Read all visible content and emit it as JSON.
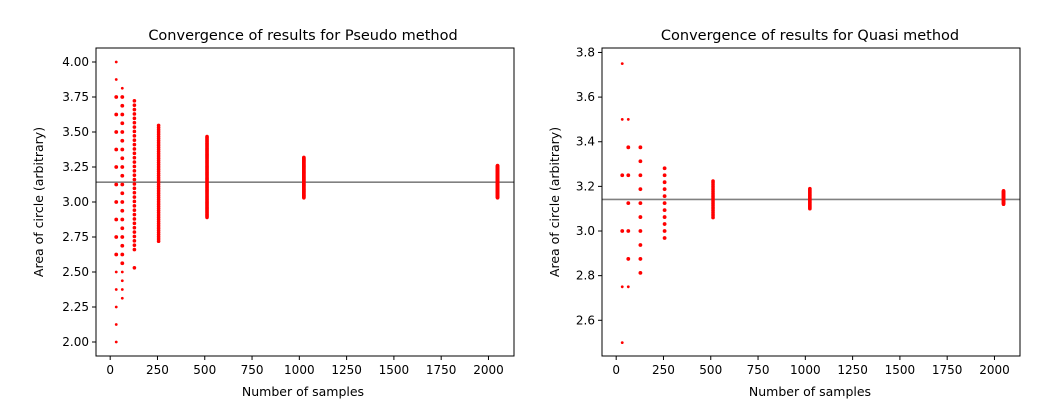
{
  "chart_data": [
    {
      "type": "scatter",
      "title": "Convergence of results for Pseudo method",
      "xlabel": "Number of samples",
      "ylabel": "Area of circle (arbitrary)",
      "xlim": [
        -75,
        2135
      ],
      "ylim": [
        1.9,
        4.1
      ],
      "xticks": [
        0,
        250,
        500,
        750,
        1000,
        1250,
        1500,
        1750,
        2000
      ],
      "yticks": [
        2.0,
        2.25,
        2.5,
        2.75,
        3.0,
        3.25,
        3.5,
        3.75,
        4.0
      ],
      "xtick_labels": [
        "0",
        "250",
        "500",
        "750",
        "1000",
        "1250",
        "1500",
        "1750",
        "2000"
      ],
      "ytick_labels": [
        "2.00",
        "2.25",
        "2.50",
        "2.75",
        "3.00",
        "3.25",
        "3.50",
        "3.75",
        "4.00"
      ],
      "reference_line": {
        "y": 3.1416,
        "color": "#808080"
      },
      "marker_color": "#ff0000",
      "grid": false,
      "clusters": [
        {
          "x": 32,
          "values": [
            2.0,
            2.125,
            2.25,
            2.375,
            2.5,
            2.625,
            2.75,
            2.875,
            3.0,
            3.125,
            3.25,
            3.375,
            3.5,
            3.625,
            3.75,
            3.875,
            4.0
          ]
        },
        {
          "x": 64,
          "values": [
            2.3125,
            2.375,
            2.4375,
            2.5,
            2.5625,
            2.625,
            2.6875,
            2.75,
            2.8125,
            2.875,
            2.9375,
            3.0,
            3.0625,
            3.125,
            3.1875,
            3.25,
            3.3125,
            3.375,
            3.4375,
            3.5,
            3.5625,
            3.625,
            3.6875,
            3.75,
            3.8125
          ]
        },
        {
          "x": 128,
          "range": [
            2.66,
            3.72
          ],
          "step": 0.03125,
          "outliers": [
            2.53
          ]
        },
        {
          "x": 256,
          "range": [
            2.72,
            3.55
          ],
          "step": 0.0156
        },
        {
          "x": 512,
          "range": [
            2.89,
            3.47
          ],
          "step": 0.0078
        },
        {
          "x": 1024,
          "range": [
            3.03,
            3.32
          ],
          "step": 0.0039
        },
        {
          "x": 2048,
          "range": [
            3.03,
            3.26
          ],
          "step": 0.002
        }
      ]
    },
    {
      "type": "scatter",
      "title": "Convergence of results for Quasi method",
      "xlabel": "Number of samples",
      "ylabel": "Area of circle (arbitrary)",
      "xlim": [
        -75,
        2135
      ],
      "ylim": [
        2.44,
        3.82
      ],
      "xticks": [
        0,
        250,
        500,
        750,
        1000,
        1250,
        1500,
        1750,
        2000
      ],
      "yticks": [
        2.6,
        2.8,
        3.0,
        3.2,
        3.4,
        3.6,
        3.8
      ],
      "xtick_labels": [
        "0",
        "250",
        "500",
        "750",
        "1000",
        "1250",
        "1500",
        "1750",
        "2000"
      ],
      "ytick_labels": [
        "2.6",
        "2.8",
        "3.0",
        "3.2",
        "3.4",
        "3.6",
        "3.8"
      ],
      "reference_line": {
        "y": 3.1416,
        "color": "#808080"
      },
      "marker_color": "#ff0000",
      "grid": false,
      "clusters": [
        {
          "x": 32,
          "values": [
            2.5,
            2.75,
            3.0,
            3.25,
            3.5,
            3.75
          ]
        },
        {
          "x": 64,
          "values": [
            2.75,
            2.875,
            3.0,
            3.125,
            3.25,
            3.375,
            3.5
          ]
        },
        {
          "x": 128,
          "values": [
            2.8125,
            2.875,
            2.9375,
            3.0,
            3.0625,
            3.125,
            3.1875,
            3.25,
            3.3125,
            3.375
          ]
        },
        {
          "x": 256,
          "values": [
            2.96875,
            3.0,
            3.03125,
            3.0625,
            3.09375,
            3.125,
            3.15625,
            3.1875,
            3.21875,
            3.25,
            3.28125
          ]
        },
        {
          "x": 512,
          "range": [
            3.06,
            3.22
          ],
          "step": 0.0078
        },
        {
          "x": 1024,
          "range": [
            3.1,
            3.19
          ],
          "step": 0.0039
        },
        {
          "x": 2048,
          "range": [
            3.12,
            3.18
          ],
          "step": 0.002
        }
      ]
    }
  ]
}
